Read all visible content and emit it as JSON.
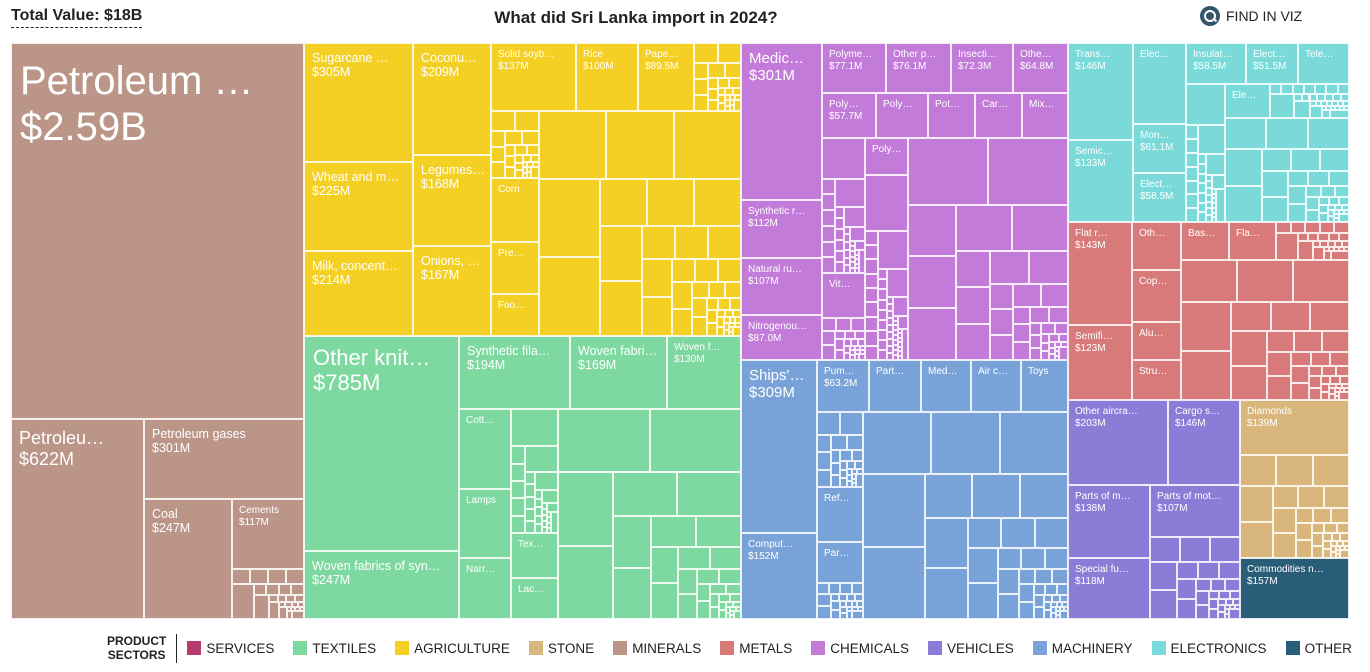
{
  "header": {
    "total": "Total Value: $18B",
    "title": "What did Sri Lanka import in 2024?",
    "find": "FIND IN VIZ"
  },
  "sectors": {
    "services": {
      "label": "SERVICES",
      "color": "#b53c6c"
    },
    "textiles": {
      "label": "TEXTILES",
      "color": "#7ed9a0"
    },
    "agriculture": {
      "label": "AGRICULTURE",
      "color": "#f5d024"
    },
    "stone": {
      "label": "STONE",
      "color": "#d9b67c"
    },
    "minerals": {
      "label": "MINERALS",
      "color": "#ba9588"
    },
    "metals": {
      "label": "METALS",
      "color": "#d97a7a"
    },
    "chemicals": {
      "label": "CHEMICALS",
      "color": "#c27bd8"
    },
    "vehicles": {
      "label": "VEHICLES",
      "color": "#8b7cd7"
    },
    "machinery": {
      "label": "MACHINERY",
      "color": "#79a3d8"
    },
    "electronics": {
      "label": "ELECTRONICS",
      "color": "#7ad9d9"
    },
    "other": {
      "label": "OTHER",
      "color": "#2a5e78"
    }
  },
  "legend": {
    "title_line1": "PRODUCT",
    "title_line2": "SECTORS",
    "order": [
      "services",
      "textiles",
      "agriculture",
      "stone",
      "minerals",
      "metals",
      "chemicals",
      "vehicles",
      "machinery",
      "electronics",
      "other"
    ]
  },
  "chart_data": {
    "type": "treemap",
    "title": "What did Sri Lanka import in 2024?",
    "total": "$18B",
    "tiles": [
      {
        "sector": "minerals",
        "label": "Petroleum …",
        "value": "$2.59B"
      },
      {
        "sector": "minerals",
        "label": "Petroleu…",
        "value": "$622M"
      },
      {
        "sector": "minerals",
        "label": "Petroleum gases",
        "value": "$301M"
      },
      {
        "sector": "minerals",
        "label": "Coal",
        "value": "$247M"
      },
      {
        "sector": "minerals",
        "label": "Cements",
        "value": "$117M"
      },
      {
        "sector": "agriculture",
        "label": "Sugarcane …",
        "value": "$305M"
      },
      {
        "sector": "agriculture",
        "label": "Wheat and m…",
        "value": "$225M"
      },
      {
        "sector": "agriculture",
        "label": "Milk, concent…",
        "value": "$214M"
      },
      {
        "sector": "agriculture",
        "label": "Coconu…",
        "value": "$209M"
      },
      {
        "sector": "agriculture",
        "label": "Legumes…",
        "value": "$168M"
      },
      {
        "sector": "agriculture",
        "label": "Onions, …",
        "value": "$167M"
      },
      {
        "sector": "agriculture",
        "label": "Solid soyb…",
        "value": "$137M"
      },
      {
        "sector": "agriculture",
        "label": "Rice",
        "value": "$100M"
      },
      {
        "sector": "agriculture",
        "label": "Pape…",
        "value": "$89.5M"
      },
      {
        "sector": "agriculture",
        "label": "Corn",
        "value": ""
      },
      {
        "sector": "agriculture",
        "label": "Pre…",
        "value": ""
      },
      {
        "sector": "agriculture",
        "label": "Foo…",
        "value": ""
      },
      {
        "sector": "textiles",
        "label": "Other knit…",
        "value": "$785M"
      },
      {
        "sector": "textiles",
        "label": "Woven fabrics of syn…",
        "value": "$247M"
      },
      {
        "sector": "textiles",
        "label": "Synthetic fila…",
        "value": "$194M"
      },
      {
        "sector": "textiles",
        "label": "Woven fabri…",
        "value": "$169M"
      },
      {
        "sector": "textiles",
        "label": "Woven f…",
        "value": "$130M"
      },
      {
        "sector": "textiles",
        "label": "Cott…",
        "value": ""
      },
      {
        "sector": "textiles",
        "label": "Lamps",
        "value": ""
      },
      {
        "sector": "textiles",
        "label": "Narr…",
        "value": ""
      },
      {
        "sector": "textiles",
        "label": "Tex…",
        "value": ""
      },
      {
        "sector": "textiles",
        "label": "Lac…",
        "value": ""
      },
      {
        "sector": "chemicals",
        "label": "Medic…",
        "value": "$301M"
      },
      {
        "sector": "chemicals",
        "label": "Synthetic r…",
        "value": "$112M"
      },
      {
        "sector": "chemicals",
        "label": "Natural ru…",
        "value": "$107M"
      },
      {
        "sector": "chemicals",
        "label": "Nitrogenou…",
        "value": "$87.0M"
      },
      {
        "sector": "chemicals",
        "label": "Polyme…",
        "value": "$77.1M"
      },
      {
        "sector": "chemicals",
        "label": "Other p…",
        "value": "$76.1M"
      },
      {
        "sector": "chemicals",
        "label": "Insecti…",
        "value": "$72.3M"
      },
      {
        "sector": "chemicals",
        "label": "Othe…",
        "value": "$64.8M"
      },
      {
        "sector": "chemicals",
        "label": "Poly…",
        "value": "$57.7M"
      },
      {
        "sector": "chemicals",
        "label": "Poly…",
        "value": ""
      },
      {
        "sector": "chemicals",
        "label": "Pot…",
        "value": ""
      },
      {
        "sector": "chemicals",
        "label": "Car…",
        "value": ""
      },
      {
        "sector": "chemicals",
        "label": "Mix…",
        "value": ""
      },
      {
        "sector": "chemicals",
        "label": "Poly…",
        "value": ""
      },
      {
        "sector": "chemicals",
        "label": "Vit…",
        "value": ""
      },
      {
        "sector": "machinery",
        "label": "Ships'…",
        "value": "$309M"
      },
      {
        "sector": "machinery",
        "label": "Comput…",
        "value": "$152M"
      },
      {
        "sector": "machinery",
        "label": "Pum…",
        "value": "$63.2M"
      },
      {
        "sector": "machinery",
        "label": "Part…",
        "value": ""
      },
      {
        "sector": "machinery",
        "label": "Med…",
        "value": ""
      },
      {
        "sector": "machinery",
        "label": "Air c…",
        "value": ""
      },
      {
        "sector": "machinery",
        "label": "Toys",
        "value": ""
      },
      {
        "sector": "machinery",
        "label": "Ref…",
        "value": ""
      },
      {
        "sector": "machinery",
        "label": "Par…",
        "value": ""
      },
      {
        "sector": "electronics",
        "label": "Trans…",
        "value": "$146M"
      },
      {
        "sector": "electronics",
        "label": "Semic…",
        "value": "$133M"
      },
      {
        "sector": "electronics",
        "label": "Elec…",
        "value": ""
      },
      {
        "sector": "electronics",
        "label": "Mon…",
        "value": "$61.1M"
      },
      {
        "sector": "electronics",
        "label": "Elect…",
        "value": "$58.5M"
      },
      {
        "sector": "electronics",
        "label": "Insulat…",
        "value": "$58.5M"
      },
      {
        "sector": "electronics",
        "label": "Elect…",
        "value": "$51.5M"
      },
      {
        "sector": "electronics",
        "label": "Tele…",
        "value": ""
      },
      {
        "sector": "electronics",
        "label": "Ele…",
        "value": ""
      },
      {
        "sector": "metals",
        "label": "Flat r…",
        "value": "$143M"
      },
      {
        "sector": "metals",
        "label": "Semifi…",
        "value": "$123M"
      },
      {
        "sector": "metals",
        "label": "Oth…",
        "value": ""
      },
      {
        "sector": "metals",
        "label": "Cop…",
        "value": ""
      },
      {
        "sector": "metals",
        "label": "Alu…",
        "value": ""
      },
      {
        "sector": "metals",
        "label": "Stru…",
        "value": ""
      },
      {
        "sector": "metals",
        "label": "Bas…",
        "value": ""
      },
      {
        "sector": "metals",
        "label": "Fla…",
        "value": ""
      },
      {
        "sector": "vehicles",
        "label": "Other aircra…",
        "value": "$203M"
      },
      {
        "sector": "vehicles",
        "label": "Cargo s…",
        "value": "$146M"
      },
      {
        "sector": "vehicles",
        "label": "Parts of m…",
        "value": "$138M"
      },
      {
        "sector": "vehicles",
        "label": "Parts of mot…",
        "value": "$107M"
      },
      {
        "sector": "vehicles",
        "label": "Special fu…",
        "value": "$118M"
      },
      {
        "sector": "stone",
        "label": "Diamonds",
        "value": "$139M"
      },
      {
        "sector": "other",
        "label": "Commodities n…",
        "value": "$157M"
      }
    ]
  }
}
